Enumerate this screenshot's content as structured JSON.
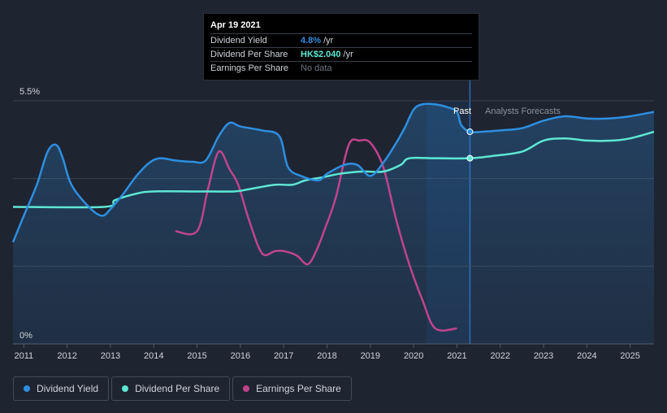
{
  "chart_data": {
    "type": "line",
    "y_axis": {
      "top_label": "5.5%",
      "bottom_label": "0%",
      "ylim": [
        0,
        5.5
      ]
    },
    "x_ticks": [
      "2011",
      "2012",
      "2013",
      "2014",
      "2015",
      "2016",
      "2017",
      "2018",
      "2019",
      "2020",
      "2021",
      "2022",
      "2023",
      "2024",
      "2025"
    ],
    "xlim": [
      2010.75,
      2025.55
    ],
    "regions": {
      "past_label": "Past",
      "forecast_label": "Analysts Forecasts",
      "divider_x": 2021.3
    },
    "series": [
      {
        "name": "Dividend Yield",
        "color": "#2d8fe0",
        "points": [
          [
            2010.75,
            2.3
          ],
          [
            2011.0,
            2.9
          ],
          [
            2011.3,
            3.6
          ],
          [
            2011.55,
            4.35
          ],
          [
            2011.75,
            4.5
          ],
          [
            2011.9,
            4.2
          ],
          [
            2012.1,
            3.6
          ],
          [
            2012.5,
            3.1
          ],
          [
            2012.8,
            2.9
          ],
          [
            2013.0,
            3.05
          ],
          [
            2013.3,
            3.4
          ],
          [
            2013.6,
            3.8
          ],
          [
            2013.9,
            4.1
          ],
          [
            2014.15,
            4.2
          ],
          [
            2014.5,
            4.15
          ],
          [
            2014.9,
            4.12
          ],
          [
            2015.2,
            4.15
          ],
          [
            2015.5,
            4.7
          ],
          [
            2015.75,
            5.0
          ],
          [
            2016.0,
            4.92
          ],
          [
            2016.5,
            4.83
          ],
          [
            2016.9,
            4.7
          ],
          [
            2017.1,
            4.0
          ],
          [
            2017.4,
            3.8
          ],
          [
            2017.8,
            3.7
          ],
          [
            2018.0,
            3.85
          ],
          [
            2018.4,
            4.05
          ],
          [
            2018.7,
            4.05
          ],
          [
            2019.0,
            3.8
          ],
          [
            2019.3,
            4.1
          ],
          [
            2019.6,
            4.55
          ],
          [
            2019.8,
            4.9
          ],
          [
            2020.0,
            5.3
          ],
          [
            2020.2,
            5.42
          ],
          [
            2020.5,
            5.42
          ],
          [
            2020.8,
            5.35
          ],
          [
            2021.0,
            5.25
          ],
          [
            2021.1,
            4.95
          ],
          [
            2021.3,
            4.8
          ],
          [
            2021.6,
            4.8
          ],
          [
            2022.0,
            4.83
          ],
          [
            2022.5,
            4.88
          ],
          [
            2023.0,
            5.05
          ],
          [
            2023.5,
            5.15
          ],
          [
            2024.0,
            5.1
          ],
          [
            2024.5,
            5.1
          ],
          [
            2025.0,
            5.15
          ],
          [
            2025.55,
            5.25
          ]
        ]
      },
      {
        "name": "Dividend Per Share",
        "color": "#5de8d4",
        "points": [
          [
            2010.75,
            3.1
          ],
          [
            2012.85,
            3.1
          ],
          [
            2013.1,
            3.25
          ],
          [
            2013.6,
            3.4
          ],
          [
            2014.0,
            3.45
          ],
          [
            2015.0,
            3.45
          ],
          [
            2015.85,
            3.45
          ],
          [
            2016.2,
            3.5
          ],
          [
            2016.8,
            3.6
          ],
          [
            2017.2,
            3.6
          ],
          [
            2017.5,
            3.7
          ],
          [
            2017.9,
            3.77
          ],
          [
            2018.3,
            3.85
          ],
          [
            2018.8,
            3.9
          ],
          [
            2019.3,
            3.9
          ],
          [
            2019.7,
            4.05
          ],
          [
            2019.9,
            4.2
          ],
          [
            2020.5,
            4.2
          ],
          [
            2021.3,
            4.2
          ],
          [
            2021.8,
            4.25
          ],
          [
            2022.5,
            4.35
          ],
          [
            2023.0,
            4.6
          ],
          [
            2023.5,
            4.65
          ],
          [
            2024.0,
            4.6
          ],
          [
            2024.6,
            4.6
          ],
          [
            2025.0,
            4.65
          ],
          [
            2025.55,
            4.8
          ]
        ]
      },
      {
        "name": "Earnings Per Share",
        "color": "#c0448c",
        "points": [
          [
            2014.5,
            2.55
          ],
          [
            2015.0,
            2.55
          ],
          [
            2015.25,
            3.5
          ],
          [
            2015.5,
            4.35
          ],
          [
            2015.75,
            3.95
          ],
          [
            2015.95,
            3.6
          ],
          [
            2016.2,
            2.8
          ],
          [
            2016.5,
            2.05
          ],
          [
            2016.8,
            2.1
          ],
          [
            2017.0,
            2.1
          ],
          [
            2017.3,
            2.0
          ],
          [
            2017.55,
            1.8
          ],
          [
            2017.75,
            2.1
          ],
          [
            2017.95,
            2.6
          ],
          [
            2018.2,
            3.3
          ],
          [
            2018.5,
            4.5
          ],
          [
            2018.75,
            4.6
          ],
          [
            2019.0,
            4.55
          ],
          [
            2019.3,
            4.0
          ],
          [
            2019.6,
            2.8
          ],
          [
            2019.9,
            1.8
          ],
          [
            2020.2,
            1.0
          ],
          [
            2020.5,
            0.35
          ],
          [
            2021.0,
            0.35
          ]
        ]
      }
    ],
    "markers": [
      {
        "series": "Dividend Yield",
        "x": 2021.3,
        "y": 4.8
      },
      {
        "series": "Dividend Per Share",
        "x": 2021.3,
        "y": 4.2
      }
    ]
  },
  "tooltip": {
    "date": "Apr 19 2021",
    "rows": [
      {
        "name": "Dividend Yield",
        "value": "4.8%",
        "unit": "/yr",
        "color": "#2d8fe0"
      },
      {
        "name": "Dividend Per Share",
        "value": "HK$2.040",
        "unit": "/yr",
        "color": "#5de8d4"
      },
      {
        "name": "Earnings Per Share",
        "value": "No data",
        "unit": "",
        "color": "#707683"
      }
    ]
  },
  "legend": [
    {
      "label": "Dividend Yield",
      "color": "#2d8fe0"
    },
    {
      "label": "Dividend Per Share",
      "color": "#5de8d4"
    },
    {
      "label": "Earnings Per Share",
      "color": "#c0448c"
    }
  ]
}
